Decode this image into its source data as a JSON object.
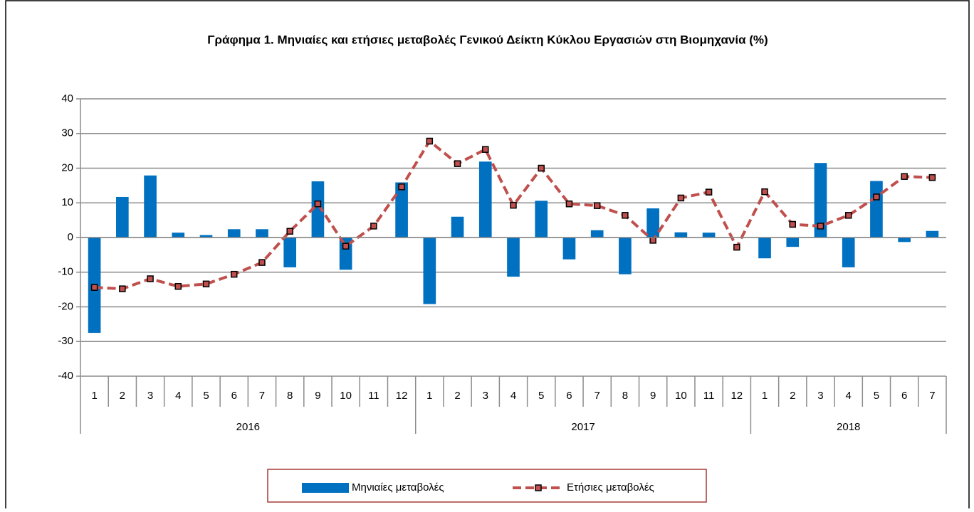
{
  "chart_data": {
    "type": "bar-line",
    "title": "Γράφημα 1. Μηνιαίες και ετήσιες μεταβολές  Γενικού Δείκτη Κύκλου Εργασιών στη Βιομηχανία (%)",
    "categories": [
      "1",
      "2",
      "3",
      "4",
      "5",
      "6",
      "7",
      "8",
      "9",
      "10",
      "11",
      "12",
      "1",
      "2",
      "3",
      "4",
      "5",
      "6",
      "7",
      "8",
      "9",
      "10",
      "11",
      "12",
      "1",
      "2",
      "3",
      "4",
      "5",
      "6",
      "7"
    ],
    "groups": [
      {
        "label": "2016",
        "size": 12
      },
      {
        "label": "2017",
        "size": 12
      },
      {
        "label": "2018",
        "size": 7
      }
    ],
    "series": [
      {
        "name": "Μηνιαίες μεταβολές",
        "type": "bar",
        "color": "#0070c0",
        "values": [
          -27.5,
          11.7,
          17.9,
          1.4,
          0.7,
          2.4,
          2.4,
          -8.6,
          16.2,
          -9.3,
          0,
          15.9,
          -19.2,
          6.0,
          21.9,
          -11.3,
          10.6,
          -6.3,
          2.1,
          -10.6,
          8.4,
          1.5,
          1.4,
          0,
          -6.0,
          -2.7,
          21.5,
          -8.6,
          16.3,
          -1.3,
          1.9
        ]
      },
      {
        "name": "Ετήσιες μεταβολές",
        "type": "line",
        "color": "#c0504d",
        "values": [
          -14.4,
          -14.8,
          -11.9,
          -14.1,
          -13.4,
          -10.6,
          -7.2,
          1.8,
          9.7,
          -2.5,
          3.3,
          14.6,
          27.8,
          21.3,
          25.4,
          9.3,
          20.0,
          9.7,
          9.2,
          6.4,
          -0.8,
          11.4,
          13.1,
          -2.8,
          13.2,
          3.8,
          3.3,
          6.4,
          11.7,
          17.6,
          17.3
        ]
      }
    ],
    "ylim": [
      -40,
      40
    ],
    "yticks": [
      -40,
      -30,
      -20,
      -10,
      0,
      10,
      20,
      30,
      40
    ],
    "grid": true,
    "legend": "bottom"
  }
}
